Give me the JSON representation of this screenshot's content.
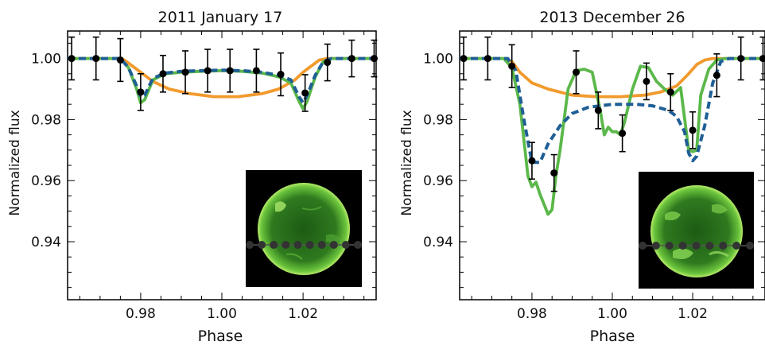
{
  "chart_data": [
    {
      "type": "line",
      "title": "2011 January 17",
      "xlabel": "Phase",
      "ylabel": "Normalized flux",
      "xlim": [
        0.962,
        1.038
      ],
      "ylim": [
        0.921,
        1.009
      ],
      "xticks": [
        0.98,
        1.0,
        1.02
      ],
      "xtick_labels": [
        "0.98",
        "1.00",
        "1.02"
      ],
      "yticks": [
        0.94,
        0.96,
        0.98,
        1.0
      ],
      "ytick_labels": [
        "0.94",
        "0.96",
        "0.98",
        "1.00"
      ],
      "grid": false,
      "colors": {
        "orange": "#f29a2e",
        "green": "#5bb84a",
        "blue": "#1f5f96",
        "points": "#000000"
      },
      "data_points": {
        "x": [
          0.963,
          0.969,
          0.975,
          0.98,
          0.9855,
          0.991,
          0.9965,
          1.002,
          1.0085,
          1.0145,
          1.0205,
          1.026,
          1.032,
          1.0375
        ],
        "y": [
          1.0,
          1.0,
          0.9995,
          0.989,
          0.995,
          0.9955,
          0.996,
          0.996,
          0.996,
          0.9948,
          0.9887,
          0.9987,
          1.0,
          1.0
        ],
        "err": [
          0.007,
          0.007,
          0.007,
          0.006,
          0.006,
          0.007,
          0.007,
          0.007,
          0.007,
          0.007,
          0.006,
          0.006,
          0.006,
          0.006
        ]
      },
      "series": [
        {
          "color": "orange",
          "dash": false,
          "x": [
            0.962,
            0.974,
            0.976,
            0.978,
            0.98,
            0.983,
            0.987,
            0.992,
            0.998,
            1.004,
            1.01,
            1.014,
            1.018,
            1.02,
            1.022,
            1.024,
            1.026,
            1.038
          ],
          "y": [
            1.0,
            1.0,
            0.9995,
            0.9975,
            0.9955,
            0.9925,
            0.99,
            0.9885,
            0.9875,
            0.9875,
            0.9885,
            0.99,
            0.993,
            0.9955,
            0.9975,
            0.9995,
            1.0,
            1.0
          ]
        },
        {
          "color": "green",
          "dash": false,
          "x": [
            0.962,
            0.975,
            0.977,
            0.979,
            0.98,
            0.981,
            0.983,
            0.986,
            0.99,
            0.995,
            1.0,
            1.005,
            1.01,
            1.014,
            1.017,
            1.019,
            1.02,
            1.021,
            1.023,
            1.025,
            1.027,
            1.038
          ],
          "y": [
            1.0,
            1.0,
            0.997,
            0.99,
            0.9855,
            0.9865,
            0.993,
            0.995,
            0.9955,
            0.9958,
            0.996,
            0.9958,
            0.9952,
            0.994,
            0.992,
            0.986,
            0.9835,
            0.986,
            0.994,
            0.999,
            1.0,
            1.0
          ]
        },
        {
          "color": "blue",
          "dash": true,
          "x": [
            0.962,
            0.975,
            0.977,
            0.979,
            0.98,
            0.981,
            0.983,
            0.986,
            0.99,
            0.995,
            1.0,
            1.005,
            1.01,
            1.014,
            1.017,
            1.019,
            1.02,
            1.021,
            1.023,
            1.025,
            1.027,
            1.038
          ],
          "y": [
            1.0,
            1.0,
            0.997,
            0.991,
            0.9875,
            0.988,
            0.9935,
            0.9952,
            0.9958,
            0.996,
            0.9962,
            0.996,
            0.9955,
            0.9945,
            0.993,
            0.9875,
            0.9855,
            0.988,
            0.9945,
            0.999,
            1.0,
            1.0
          ]
        }
      ],
      "inset": {
        "description": "SDO solar disk image",
        "dots": 10
      }
    },
    {
      "type": "line",
      "title": "2013 December 26",
      "xlabel": "Phase",
      "ylabel": "Normalized flux",
      "xlim": [
        0.962,
        1.038
      ],
      "ylim": [
        0.921,
        1.009
      ],
      "xticks": [
        0.98,
        1.0,
        1.02
      ],
      "xtick_labels": [
        "0.98",
        "1.00",
        "1.02"
      ],
      "yticks": [
        0.94,
        0.96,
        0.98,
        1.0
      ],
      "ytick_labels": [
        "0.94",
        "0.96",
        "0.98",
        "1.00"
      ],
      "grid": false,
      "colors": {
        "orange": "#f29a2e",
        "green": "#5bb84a",
        "blue": "#1f5f96",
        "points": "#000000"
      },
      "data_points": {
        "x": [
          0.963,
          0.969,
          0.975,
          0.98,
          0.9855,
          0.991,
          0.9965,
          1.0025,
          1.0085,
          1.0145,
          1.02,
          1.026,
          1.032,
          1.0375
        ],
        "y": [
          1.0,
          1.0,
          0.9975,
          0.9665,
          0.9625,
          0.9955,
          0.983,
          0.9755,
          0.9925,
          0.989,
          0.9765,
          0.9945,
          1.0,
          1.0
        ],
        "err": [
          0.007,
          0.007,
          0.007,
          0.006,
          0.006,
          0.007,
          0.006,
          0.006,
          0.006,
          0.006,
          0.006,
          0.007,
          0.007,
          0.007
        ]
      },
      "series": [
        {
          "color": "orange",
          "dash": false,
          "x": [
            0.962,
            0.973,
            0.975,
            0.977,
            0.98,
            0.984,
            0.99,
            0.996,
            1.002,
            1.008,
            1.012,
            1.016,
            1.019,
            1.021,
            1.023,
            1.025,
            1.038
          ],
          "y": [
            1.0,
            1.0,
            0.999,
            0.9955,
            0.992,
            0.99,
            0.988,
            0.9875,
            0.9875,
            0.988,
            0.989,
            0.991,
            0.995,
            0.998,
            0.9995,
            1.0,
            1.0
          ]
        },
        {
          "color": "green",
          "dash": false,
          "x": [
            0.962,
            0.973,
            0.975,
            0.977,
            0.979,
            0.98,
            0.981,
            0.982,
            0.984,
            0.985,
            0.986,
            0.987,
            0.989,
            0.991,
            0.993,
            0.995,
            0.997,
            0.998,
            0.999,
            1.0,
            1.001,
            1.002,
            1.003,
            1.005,
            1.007,
            1.009,
            1.011,
            1.013,
            1.015,
            1.017,
            1.019,
            1.02,
            1.021,
            1.022,
            1.024,
            1.026,
            1.028,
            1.038
          ],
          "y": [
            1.0,
            1.0,
            0.997,
            0.985,
            0.9615,
            0.958,
            0.9595,
            0.9555,
            0.949,
            0.9505,
            0.962,
            0.97,
            0.99,
            0.996,
            0.9965,
            0.9955,
            0.983,
            0.975,
            0.9775,
            0.976,
            0.976,
            0.975,
            0.979,
            0.99,
            0.9975,
            0.997,
            0.9925,
            0.99,
            0.988,
            0.9905,
            0.97,
            0.9695,
            0.97,
            0.988,
            0.9965,
            0.9995,
            1.0,
            1.0
          ]
        },
        {
          "color": "blue",
          "dash": true,
          "x": [
            0.962,
            0.974,
            0.976,
            0.978,
            0.98,
            0.982,
            0.984,
            0.987,
            0.99,
            0.994,
            1.0,
            1.006,
            1.01,
            1.014,
            1.016,
            1.018,
            1.019,
            1.02,
            1.021,
            1.023,
            1.025,
            1.027,
            1.029,
            1.038
          ],
          "y": [
            1.0,
            1.0,
            0.996,
            0.98,
            0.966,
            0.966,
            0.972,
            0.978,
            0.982,
            0.984,
            0.985,
            0.985,
            0.9845,
            0.983,
            0.981,
            0.976,
            0.969,
            0.9665,
            0.968,
            0.978,
            0.992,
            0.999,
            1.0,
            1.0
          ]
        }
      ],
      "inset": {
        "description": "SDO solar disk image",
        "dots": 9
      }
    }
  ]
}
